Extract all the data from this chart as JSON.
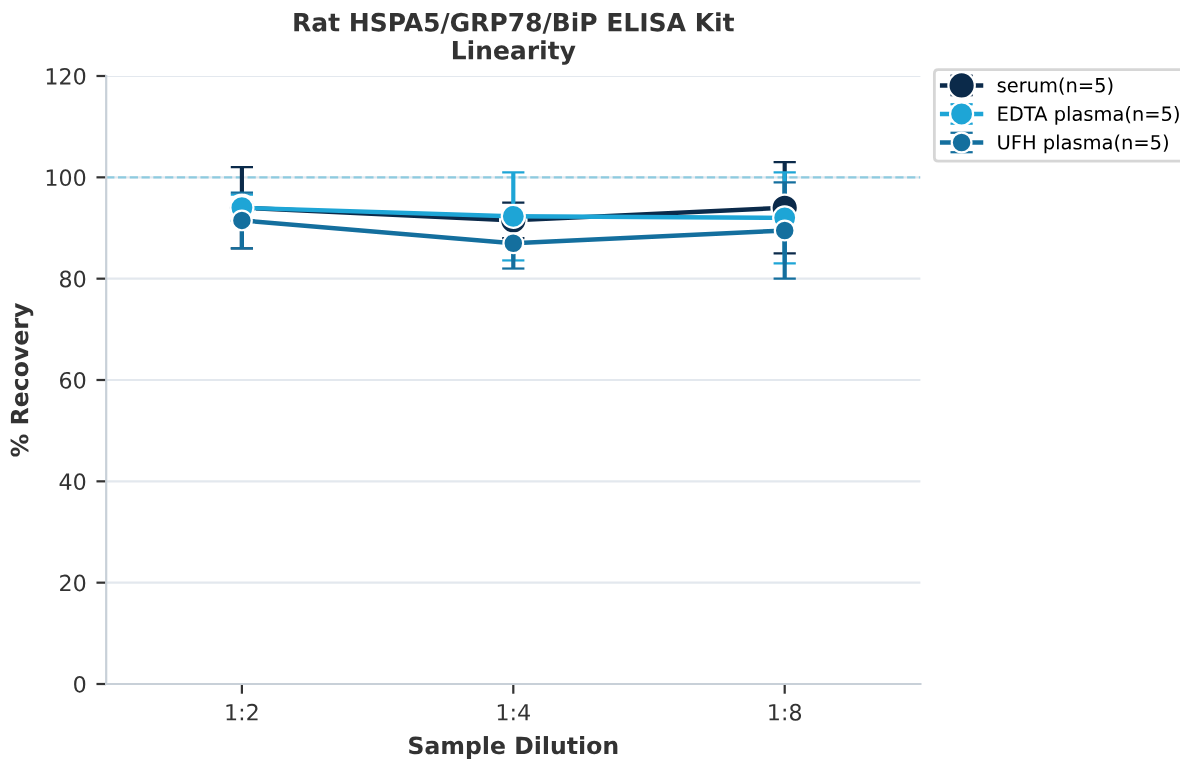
{
  "chart_data": {
    "type": "line",
    "title": "Rat HSPA5/GRP78/BiP ELISA Kit\nLinearity",
    "xlabel": "Sample Dilution",
    "ylabel": "% Recovery",
    "categories": [
      "1:2",
      "1:4",
      "1:8"
    ],
    "series": [
      {
        "name": "serum(n=5)",
        "color": "#0b2a4a",
        "values": [
          94,
          91.5,
          94
        ],
        "errors": [
          8,
          3.5,
          9
        ]
      },
      {
        "name": "EDTA plasma(n=5)",
        "color": "#1ea5d6",
        "values": [
          94,
          92.3,
          92
        ],
        "errors": [
          2.6,
          8.7,
          9
        ]
      },
      {
        "name": "UFH plasma(n=5)",
        "color": "#146f9e",
        "values": [
          91.5,
          87,
          89.5
        ],
        "errors": [
          5.5,
          5,
          9.5
        ]
      }
    ],
    "ylim": [
      0,
      120
    ],
    "yticks": [
      0,
      20,
      40,
      60,
      80,
      100,
      120
    ],
    "grid": "y",
    "legend": "top right",
    "marker": "circle",
    "line_style": "solid",
    "ref_lines": [
      {
        "axis": "y",
        "value": 100,
        "color": "#8ecbe0",
        "line_style": "dashed"
      }
    ]
  }
}
